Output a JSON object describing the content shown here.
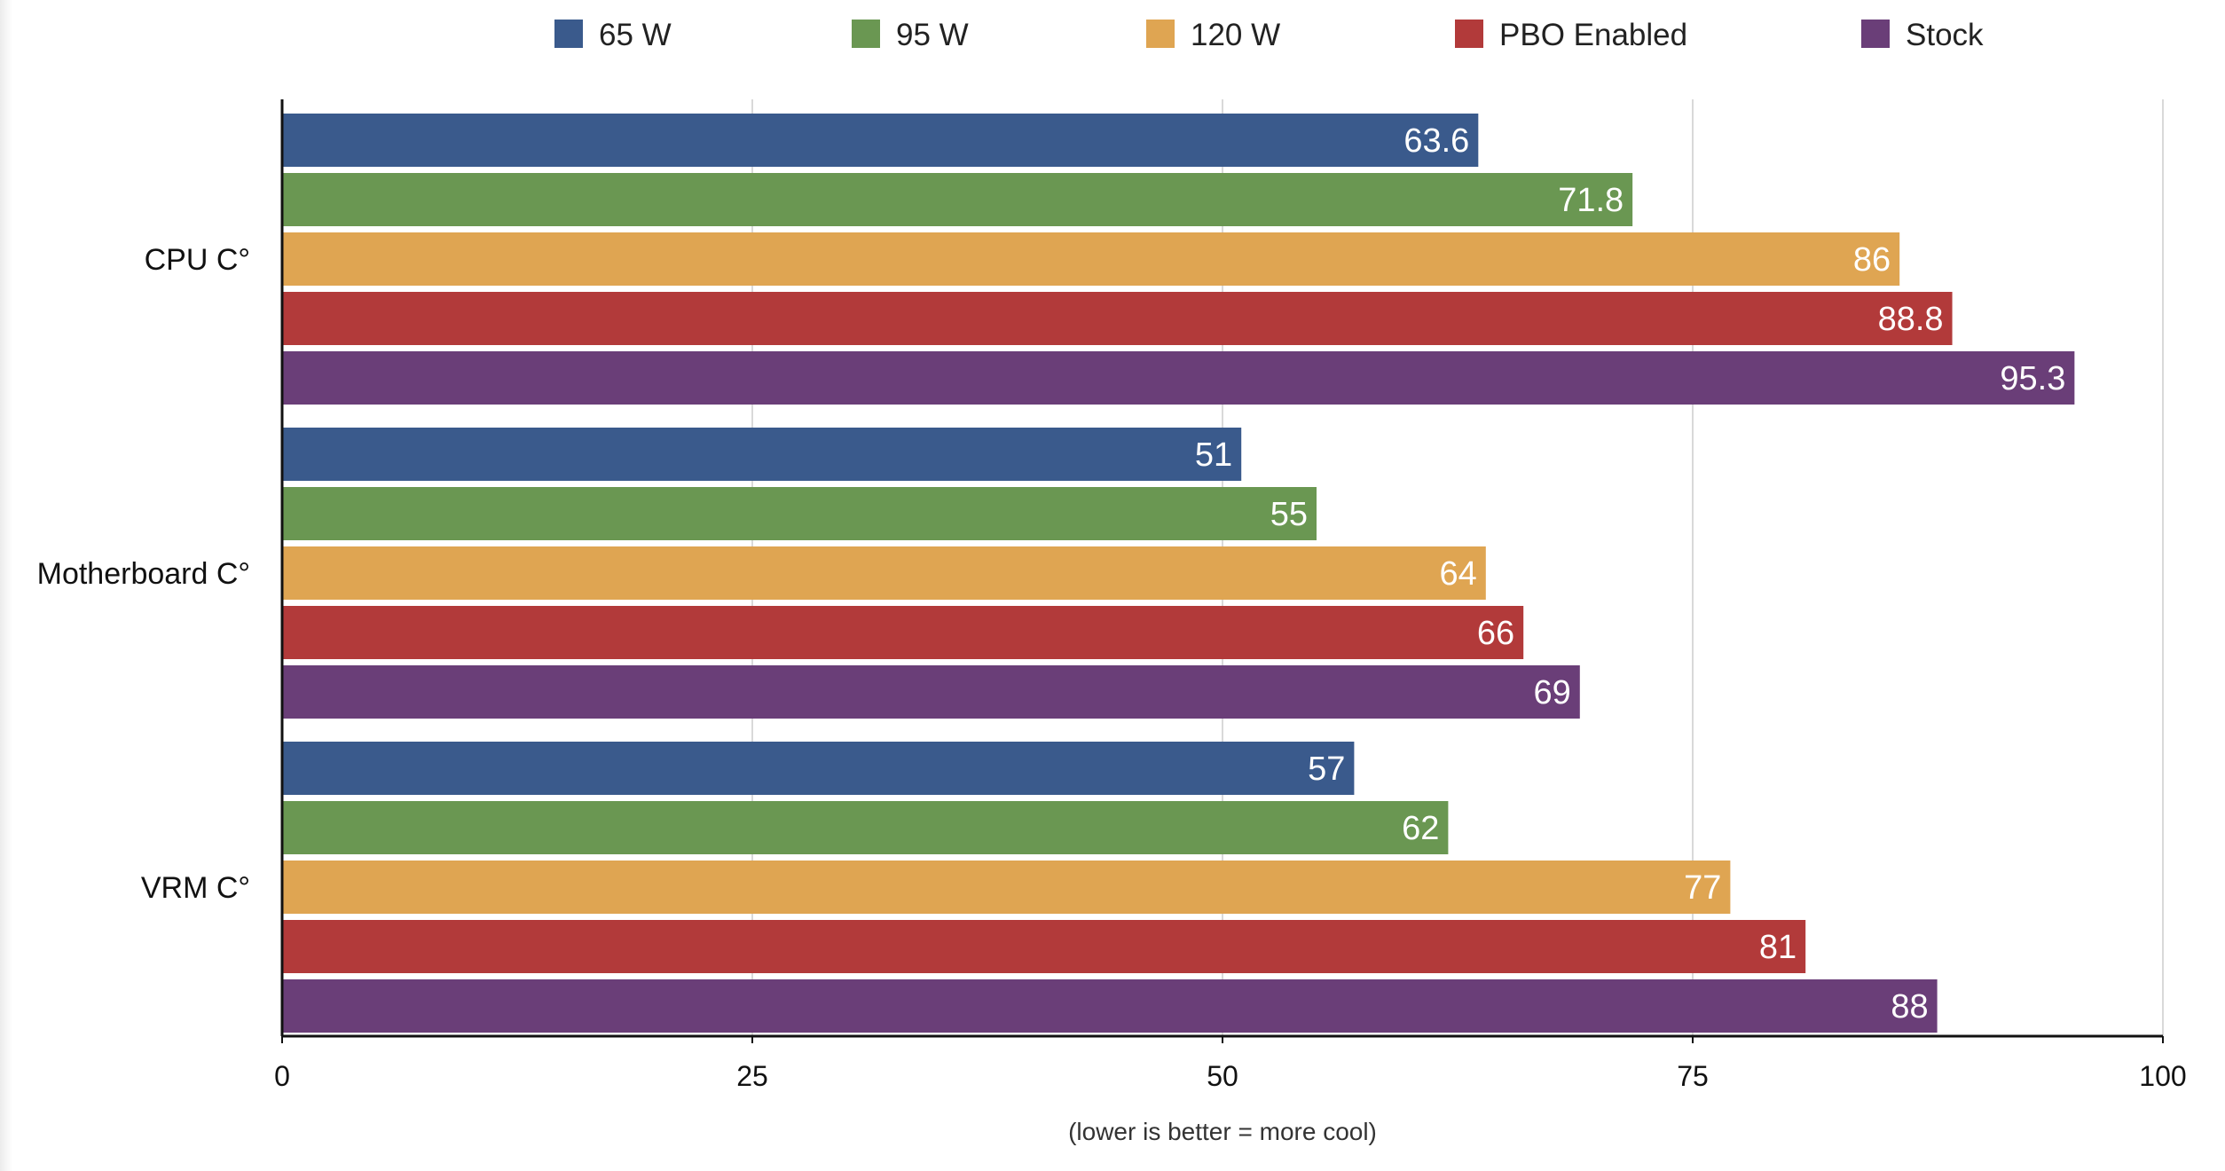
{
  "chart_data": {
    "type": "bar",
    "orientation": "horizontal",
    "categories": [
      "CPU C°",
      "Motherboard C°",
      "VRM C°"
    ],
    "series": [
      {
        "name": "65 W",
        "color": "#3a5a8c",
        "values": [
          63.6,
          51,
          57
        ]
      },
      {
        "name": "95 W",
        "color": "#6a9752",
        "values": [
          71.8,
          55,
          62
        ]
      },
      {
        "name": "120 W",
        "color": "#dfa552",
        "values": [
          86,
          64,
          77
        ]
      },
      {
        "name": "PBO Enabled",
        "color": "#b23a3a",
        "values": [
          88.8,
          66,
          81
        ]
      },
      {
        "name": "Stock",
        "color": "#6a3e78",
        "values": [
          95.3,
          69,
          88
        ]
      }
    ],
    "xlim": [
      0,
      100
    ],
    "xticks": [
      0,
      25,
      50,
      75,
      100
    ],
    "xlabel": "(lower is better = more cool)",
    "ylabel": "",
    "title": "",
    "grid": true,
    "legend_position": "top"
  }
}
